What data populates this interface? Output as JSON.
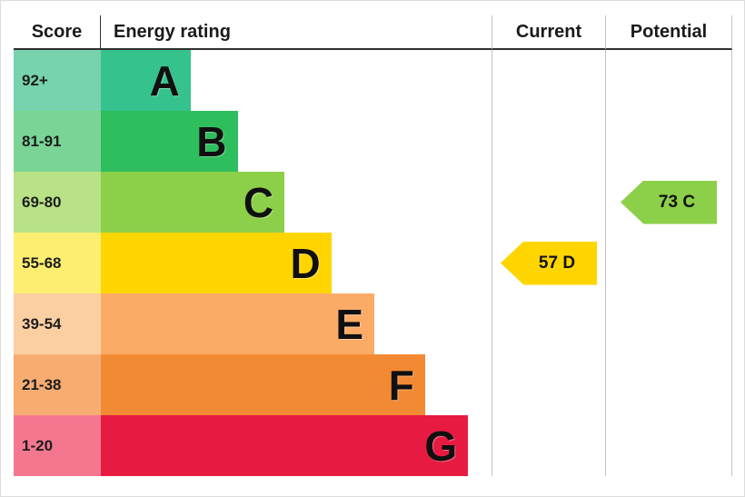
{
  "header": {
    "score_label": "Score",
    "rating_label": "Energy rating",
    "current_label": "Current",
    "potential_label": "Potential"
  },
  "bands": [
    {
      "letter": "A",
      "score": "92+",
      "bar_color": "#35c28c",
      "score_tint": "#77d3ad",
      "width_pct": 23
    },
    {
      "letter": "B",
      "score": "81-91",
      "bar_color": "#2fbe5d",
      "score_tint": "#79d495",
      "width_pct": 35
    },
    {
      "letter": "C",
      "score": "69-80",
      "bar_color": "#8ccf49",
      "score_tint": "#b9e286",
      "width_pct": 47
    },
    {
      "letter": "D",
      "score": "55-68",
      "bar_color": "#ffd500",
      "score_tint": "#fdee71",
      "width_pct": 59
    },
    {
      "letter": "E",
      "score": "39-54",
      "bar_color": "#fbab66",
      "score_tint": "#fccfa2",
      "width_pct": 70
    },
    {
      "letter": "F",
      "score": "21-38",
      "bar_color": "#f28a33",
      "score_tint": "#f7ad72",
      "width_pct": 83
    },
    {
      "letter": "G",
      "score": "1-20",
      "bar_color": "#e71b41",
      "score_tint": "#f4778f",
      "width_pct": 94
    }
  ],
  "current": {
    "label": "57 D",
    "value": 57,
    "band": "D",
    "arrow_color": "#ffd500"
  },
  "potential": {
    "label": "73 C",
    "value": 73,
    "band": "C",
    "arrow_color": "#8ccf49"
  },
  "chart_data": {
    "type": "bar",
    "title": "Energy rating",
    "categories": [
      "A",
      "B",
      "C",
      "D",
      "E",
      "F",
      "G"
    ],
    "score_ranges": [
      "92+",
      "81-91",
      "69-80",
      "55-68",
      "39-54",
      "21-38",
      "1-20"
    ],
    "bar_lengths_pct": [
      23,
      35,
      47,
      59,
      70,
      83,
      94
    ],
    "columns": [
      "Score",
      "Energy rating",
      "Current",
      "Potential"
    ],
    "current": {
      "value": 57,
      "band": "D"
    },
    "potential": {
      "value": 73,
      "band": "C"
    },
    "grid": false,
    "legend_position": "none"
  }
}
